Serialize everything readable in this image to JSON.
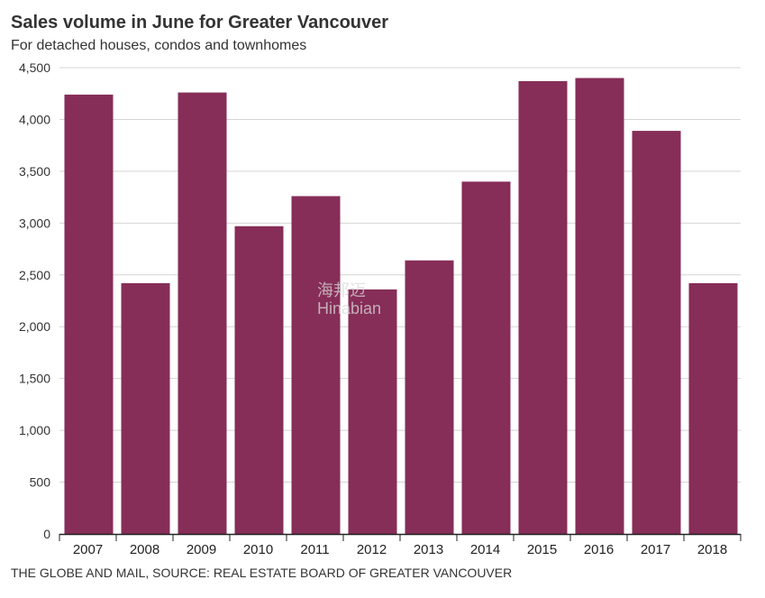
{
  "chart_data": {
    "type": "bar",
    "title": "Sales volume in June for Greater Vancouver",
    "subtitle": "For detached houses, condos and townhomes",
    "categories": [
      "2007",
      "2008",
      "2009",
      "2010",
      "2011",
      "2012",
      "2013",
      "2014",
      "2015",
      "2016",
      "2017",
      "2018"
    ],
    "values": [
      4240,
      2420,
      4260,
      2970,
      3260,
      2360,
      2640,
      3400,
      4370,
      4400,
      3890,
      2420
    ],
    "ylim": [
      0,
      4500
    ],
    "yticks": [
      0,
      500,
      1000,
      1500,
      2000,
      2500,
      3000,
      3500,
      4000,
      4500
    ],
    "ytick_labels": [
      "0",
      "500",
      "1,000",
      "1,500",
      "2,000",
      "2,500",
      "3,000",
      "3,500",
      "4,000",
      "4,500"
    ],
    "grid": true,
    "bar_color": "#862d58",
    "source": "THE GLOBE AND MAIL, SOURCE: REAL ESTATE BOARD OF GREATER VANCOUVER"
  },
  "watermark": {
    "line1": "海邦迈",
    "line2": "Hinabian"
  }
}
